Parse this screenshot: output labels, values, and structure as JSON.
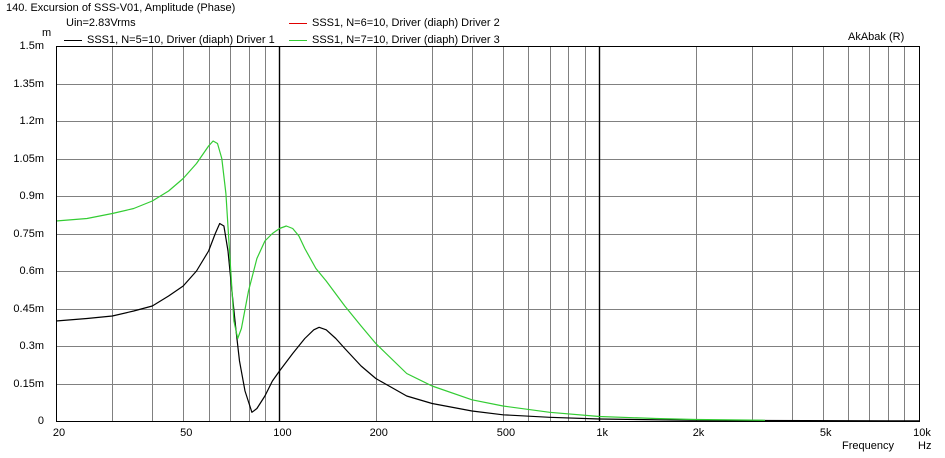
{
  "header": {
    "title": "140. Excursion of SSS-V01, Amplitude (Phase)",
    "condition": "Uin=2.83Vrms",
    "y_unit": "m",
    "brand": "AkAbak (R)"
  },
  "legend": [
    {
      "label": "SSS1, N=5=10, Driver (diaph) Driver 1",
      "color": "#000000"
    },
    {
      "label": "SSS1, N=6=10, Driver (diaph) Driver 2",
      "color": "#e00000"
    },
    {
      "label": "SSS1, N=7=10, Driver (diaph) Driver 3",
      "color": "#33cc33"
    }
  ],
  "chart_data": {
    "type": "line",
    "title": "140. Excursion of SSS-V01, Amplitude (Phase)",
    "xlabel": "Frequency",
    "xunit": "Hz",
    "ylabel": "m",
    "xscale": "log",
    "xlim": [
      20,
      10000
    ],
    "ylim": [
      0,
      0.0015
    ],
    "grid": true,
    "legend_position": "top-left",
    "x_ticks": [
      {
        "value": 20,
        "label": "20"
      },
      {
        "value": 50,
        "label": "50"
      },
      {
        "value": 100,
        "label": "100"
      },
      {
        "value": 200,
        "label": "200"
      },
      {
        "value": 500,
        "label": "500"
      },
      {
        "value": 1000,
        "label": "1k"
      },
      {
        "value": 2000,
        "label": "2k"
      },
      {
        "value": 5000,
        "label": "5k"
      },
      {
        "value": 10000,
        "label": "10k"
      }
    ],
    "y_ticks": [
      {
        "value": 0,
        "label": "0"
      },
      {
        "value": 0.00015,
        "label": "0.15m"
      },
      {
        "value": 0.0003,
        "label": "0.3m"
      },
      {
        "value": 0.00045,
        "label": "0.45m"
      },
      {
        "value": 0.0006,
        "label": "0.6m"
      },
      {
        "value": 0.00075,
        "label": "0.75m"
      },
      {
        "value": 0.0009,
        "label": "0.9m"
      },
      {
        "value": 0.00105,
        "label": "1.05m"
      },
      {
        "value": 0.0012,
        "label": "1.2m"
      },
      {
        "value": 0.00135,
        "label": "1.35m"
      },
      {
        "value": 0.0015,
        "label": "1.5m"
      }
    ],
    "series": [
      {
        "name": "SSS1, N=5=10, Driver (diaph) Driver 1",
        "color": "#000000",
        "points": [
          [
            20,
            0.0004
          ],
          [
            25,
            0.00041
          ],
          [
            30,
            0.00042
          ],
          [
            35,
            0.00044
          ],
          [
            40,
            0.00046
          ],
          [
            45,
            0.0005
          ],
          [
            50,
            0.00054
          ],
          [
            55,
            0.0006
          ],
          [
            60,
            0.00068
          ],
          [
            63,
            0.00075
          ],
          [
            65,
            0.00079
          ],
          [
            67,
            0.00078
          ],
          [
            69,
            0.00068
          ],
          [
            71,
            0.00052
          ],
          [
            73,
            0.00037
          ],
          [
            75,
            0.00024
          ],
          [
            78,
            0.00012
          ],
          [
            82,
            3.5e-05
          ],
          [
            85,
            5e-05
          ],
          [
            90,
            0.0001
          ],
          [
            95,
            0.00016
          ],
          [
            100,
            0.0002
          ],
          [
            110,
            0.00027
          ],
          [
            120,
            0.00033
          ],
          [
            128,
            0.000365
          ],
          [
            133,
            0.000375
          ],
          [
            140,
            0.000365
          ],
          [
            150,
            0.00033
          ],
          [
            160,
            0.00029
          ],
          [
            180,
            0.00022
          ],
          [
            200,
            0.00017
          ],
          [
            250,
            0.0001
          ],
          [
            300,
            7e-05
          ],
          [
            400,
            4e-05
          ],
          [
            500,
            2.5e-05
          ],
          [
            700,
            1.5e-05
          ],
          [
            1000,
            8e-06
          ],
          [
            2000,
            3e-06
          ],
          [
            10000,
            5e-07
          ]
        ]
      },
      {
        "name": "SSS1, N=7=10, Driver (diaph) Driver 3",
        "color": "#33cc33",
        "points": [
          [
            20,
            0.0008
          ],
          [
            25,
            0.00081
          ],
          [
            30,
            0.00083
          ],
          [
            35,
            0.00085
          ],
          [
            40,
            0.00088
          ],
          [
            45,
            0.00092
          ],
          [
            50,
            0.00097
          ],
          [
            55,
            0.00103
          ],
          [
            60,
            0.0011
          ],
          [
            62,
            0.00112
          ],
          [
            64,
            0.00111
          ],
          [
            66,
            0.00105
          ],
          [
            68,
            0.00091
          ],
          [
            70,
            0.00065
          ],
          [
            72,
            0.0004
          ],
          [
            74,
            0.00033
          ],
          [
            76,
            0.00037
          ],
          [
            80,
            0.00052
          ],
          [
            85,
            0.00065
          ],
          [
            90,
            0.00072
          ],
          [
            95,
            0.00075
          ],
          [
            100,
            0.00077
          ],
          [
            105,
            0.00078
          ],
          [
            110,
            0.00077
          ],
          [
            115,
            0.00074
          ],
          [
            120,
            0.00069
          ],
          [
            130,
            0.00061
          ],
          [
            140,
            0.00056
          ],
          [
            160,
            0.00046
          ],
          [
            180,
            0.00038
          ],
          [
            200,
            0.00031
          ],
          [
            250,
            0.00019
          ],
          [
            300,
            0.00014
          ],
          [
            400,
            8.5e-05
          ],
          [
            500,
            6e-05
          ],
          [
            700,
            3.5e-05
          ],
          [
            1000,
            1.8e-05
          ],
          [
            1500,
            1e-05
          ],
          [
            2000,
            6e-06
          ],
          [
            3300,
            3e-06
          ]
        ]
      }
    ]
  }
}
